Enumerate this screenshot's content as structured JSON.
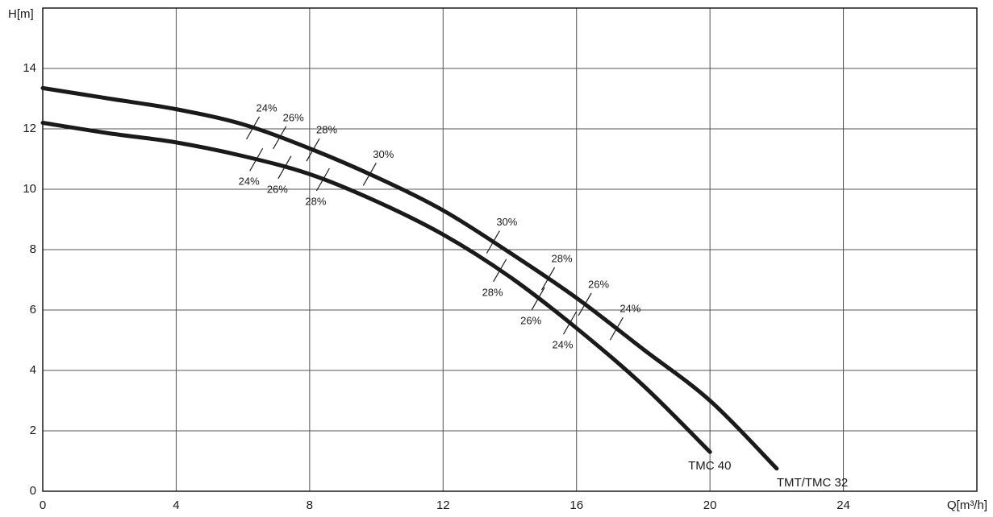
{
  "chart_data": {
    "type": "line",
    "x_label": "Q[m³/h]",
    "y_label": "H[m]",
    "xlim": [
      0,
      28
    ],
    "ylim": [
      0,
      16
    ],
    "xticks": [
      0,
      4,
      8,
      12,
      16,
      20,
      24
    ],
    "yticks": [
      0,
      2,
      4,
      6,
      8,
      10,
      12,
      14
    ],
    "grid": true,
    "series": [
      {
        "name": "TMC 40",
        "color": "#1a1a1a",
        "x": [
          0,
          2,
          4,
          6,
          8,
          10,
          12,
          14,
          16,
          18,
          20
        ],
        "values": [
          12.2,
          11.85,
          11.55,
          11.1,
          10.5,
          9.6,
          8.5,
          7.1,
          5.4,
          3.5,
          1.3
        ],
        "efficiency": [
          {
            "label": "24%",
            "x": 6.4
          },
          {
            "label": "26%",
            "x": 7.25
          },
          {
            "label": "28%",
            "x": 8.4
          },
          {
            "label": "28%",
            "x": 13.7
          },
          {
            "label": "26%",
            "x": 14.85
          },
          {
            "label": "24%",
            "x": 15.8
          }
        ]
      },
      {
        "name": "TMT/TMC 32",
        "color": "#1a1a1a",
        "x": [
          0,
          2,
          4,
          6,
          8,
          10,
          12,
          14,
          16,
          18,
          20,
          22
        ],
        "values": [
          13.35,
          13.0,
          12.65,
          12.15,
          11.35,
          10.4,
          9.3,
          7.9,
          6.4,
          4.7,
          3.0,
          0.75
        ],
        "efficiency": [
          {
            "label": "24%",
            "x": 6.3
          },
          {
            "label": "26%",
            "x": 7.1
          },
          {
            "label": "28%",
            "x": 8.1
          },
          {
            "label": "30%",
            "x": 9.8
          },
          {
            "label": "30%",
            "x": 13.5
          },
          {
            "label": "28%",
            "x": 15.15
          },
          {
            "label": "26%",
            "x": 16.25
          },
          {
            "label": "24%",
            "x": 17.2
          }
        ]
      }
    ]
  }
}
